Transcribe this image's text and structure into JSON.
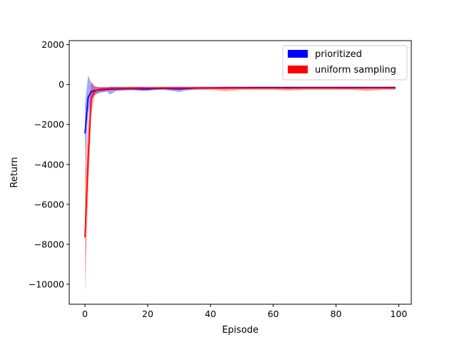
{
  "chart_data": {
    "type": "line",
    "title": "",
    "xlabel": "Episode",
    "ylabel": "Return",
    "xlim": [
      -5,
      104
    ],
    "ylim": [
      -11000,
      2200
    ],
    "x_ticks": [
      0,
      20,
      40,
      60,
      80,
      100
    ],
    "x_tick_labels": [
      "0",
      "20",
      "40",
      "60",
      "80",
      "100"
    ],
    "y_ticks": [
      -10000,
      -8000,
      -6000,
      -4000,
      -2000,
      0,
      2000
    ],
    "y_tick_labels": [
      "−10000",
      "−8000",
      "−6000",
      "−4000",
      "−2000",
      "0",
      "2000"
    ],
    "grid": false,
    "legend_position": "upper right",
    "legend": [
      {
        "name": "prioritized",
        "color": "#0000ff"
      },
      {
        "name": "uniform sampling",
        "color": "#ff0000"
      }
    ],
    "series": [
      {
        "name": "prioritized",
        "color": "#0000ff",
        "x": [
          0,
          1,
          2,
          3,
          4,
          5,
          6,
          7,
          8,
          10,
          12,
          15,
          18,
          20,
          22,
          25,
          28,
          30,
          32,
          35,
          40,
          45,
          50,
          55,
          60,
          65,
          70,
          75,
          80,
          85,
          90,
          95,
          99
        ],
        "mean": [
          -2450,
          -650,
          -350,
          -300,
          -280,
          -260,
          -250,
          -240,
          -230,
          -220,
          -210,
          -200,
          -220,
          -230,
          -200,
          -190,
          -210,
          -220,
          -200,
          -180,
          -170,
          -160,
          -160,
          -150,
          -150,
          -150,
          -150,
          -150,
          -150,
          -150,
          -150,
          -150,
          -150
        ],
        "lower": [
          -4000,
          -1500,
          -800,
          -500,
          -450,
          -400,
          -380,
          -350,
          -500,
          -320,
          -300,
          -280,
          -330,
          -320,
          -280,
          -260,
          -320,
          -380,
          -300,
          -250,
          -230,
          -220,
          -210,
          -200,
          -200,
          -200,
          -200,
          -200,
          -200,
          -200,
          -200,
          -200,
          -200
        ],
        "upper": [
          -1000,
          450,
          100,
          -100,
          -120,
          -150,
          -130,
          -150,
          -100,
          -120,
          -130,
          -130,
          -120,
          -140,
          -130,
          -120,
          -110,
          -100,
          -120,
          -110,
          -110,
          -100,
          -100,
          -100,
          -100,
          -100,
          -100,
          -100,
          -100,
          -100,
          -100,
          -100,
          -100
        ]
      },
      {
        "name": "uniform sampling",
        "color": "#ff0000",
        "x": [
          0,
          1,
          2,
          3,
          4,
          5,
          6,
          7,
          8,
          10,
          12,
          15,
          18,
          20,
          22,
          25,
          28,
          30,
          32,
          35,
          40,
          45,
          50,
          55,
          60,
          65,
          70,
          75,
          80,
          85,
          90,
          95,
          99
        ],
        "mean": [
          -7650,
          -3800,
          -700,
          -350,
          -260,
          -230,
          -220,
          -210,
          -200,
          -190,
          -185,
          -180,
          -180,
          -175,
          -175,
          -175,
          -175,
          -175,
          -175,
          -175,
          -175,
          -180,
          -175,
          -175,
          -175,
          -180,
          -175,
          -175,
          -175,
          -180,
          -175,
          -175,
          -175
        ],
        "lower": [
          -10500,
          -5500,
          -1500,
          -600,
          -420,
          -380,
          -350,
          -320,
          -300,
          -290,
          -280,
          -270,
          -270,
          -260,
          -260,
          -260,
          -260,
          -260,
          -260,
          -260,
          -260,
          -330,
          -260,
          -260,
          -260,
          -300,
          -260,
          -260,
          -260,
          -260,
          -320,
          -260,
          -260
        ],
        "upper": [
          -4200,
          -2000,
          150,
          -50,
          -120,
          -110,
          -120,
          -110,
          -120,
          -110,
          -110,
          -110,
          -110,
          -110,
          -110,
          -110,
          -110,
          -110,
          -110,
          -110,
          -110,
          -110,
          -110,
          -110,
          -110,
          -110,
          -110,
          -110,
          -110,
          -110,
          -110,
          -110,
          -110
        ]
      }
    ]
  }
}
